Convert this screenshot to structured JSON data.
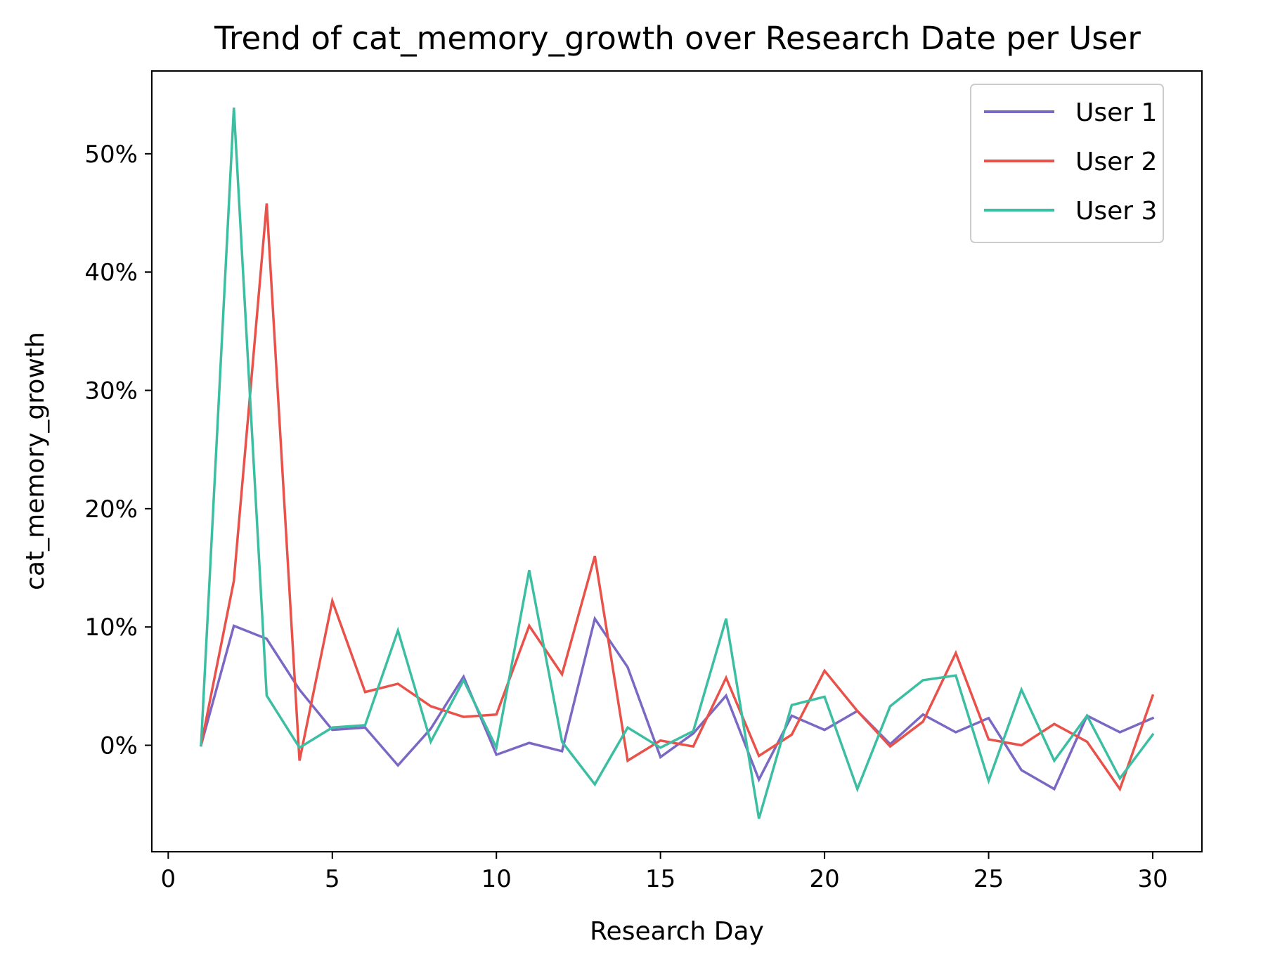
{
  "chart_data": {
    "type": "line",
    "title": "Trend of cat_memory_growth over Research Date per User",
    "xlabel": "Research Day",
    "ylabel": "cat_memory_growth",
    "xlim": [
      -0.5,
      31.5
    ],
    "ylim": [
      -9,
      57
    ],
    "x_ticks": [
      0,
      5,
      10,
      15,
      20,
      25,
      30
    ],
    "y_ticks": [
      0,
      10,
      20,
      30,
      40,
      50
    ],
    "y_tick_format": "percent",
    "grid": false,
    "legend_position": "top-right",
    "x": [
      1,
      2,
      3,
      4,
      5,
      6,
      7,
      8,
      9,
      10,
      11,
      12,
      13,
      14,
      15,
      16,
      17,
      18,
      19,
      20,
      21,
      22,
      23,
      24,
      25,
      26,
      27,
      28,
      29,
      30
    ],
    "series": [
      {
        "name": "User 1",
        "color": "#7b68c4",
        "values": [
          0,
          10.1,
          9.0,
          4.7,
          1.3,
          1.5,
          -1.7,
          1.4,
          5.8,
          -0.8,
          0.2,
          -0.5,
          10.7,
          6.6,
          -1.0,
          1.0,
          4.2,
          -2.9,
          2.5,
          1.3,
          2.9,
          0.1,
          2.6,
          1.1,
          2.3,
          -2.1,
          -3.7,
          2.5,
          1.1,
          2.3
        ]
      },
      {
        "name": "User 2",
        "color": "#e8524a",
        "values": [
          0,
          13.9,
          45.8,
          -1.3,
          12.2,
          4.5,
          5.2,
          3.3,
          2.4,
          2.6,
          10.1,
          6.0,
          16.0,
          -1.3,
          0.4,
          -0.1,
          5.7,
          -0.9,
          0.9,
          6.3,
          2.9,
          -0.1,
          2.0,
          7.8,
          0.5,
          0.0,
          1.8,
          0.3,
          -3.7,
          4.2
        ]
      },
      {
        "name": "User 3",
        "color": "#3cbea3",
        "values": [
          0,
          53.9,
          4.2,
          -0.2,
          1.5,
          1.7,
          9.7,
          0.3,
          5.5,
          -0.2,
          14.8,
          0.3,
          -3.3,
          1.5,
          -0.2,
          1.2,
          10.7,
          -6.2,
          3.4,
          4.1,
          -3.7,
          3.3,
          5.5,
          5.9,
          -3.0,
          4.7,
          -1.3,
          2.5,
          -2.8,
          0.9
        ]
      }
    ]
  }
}
